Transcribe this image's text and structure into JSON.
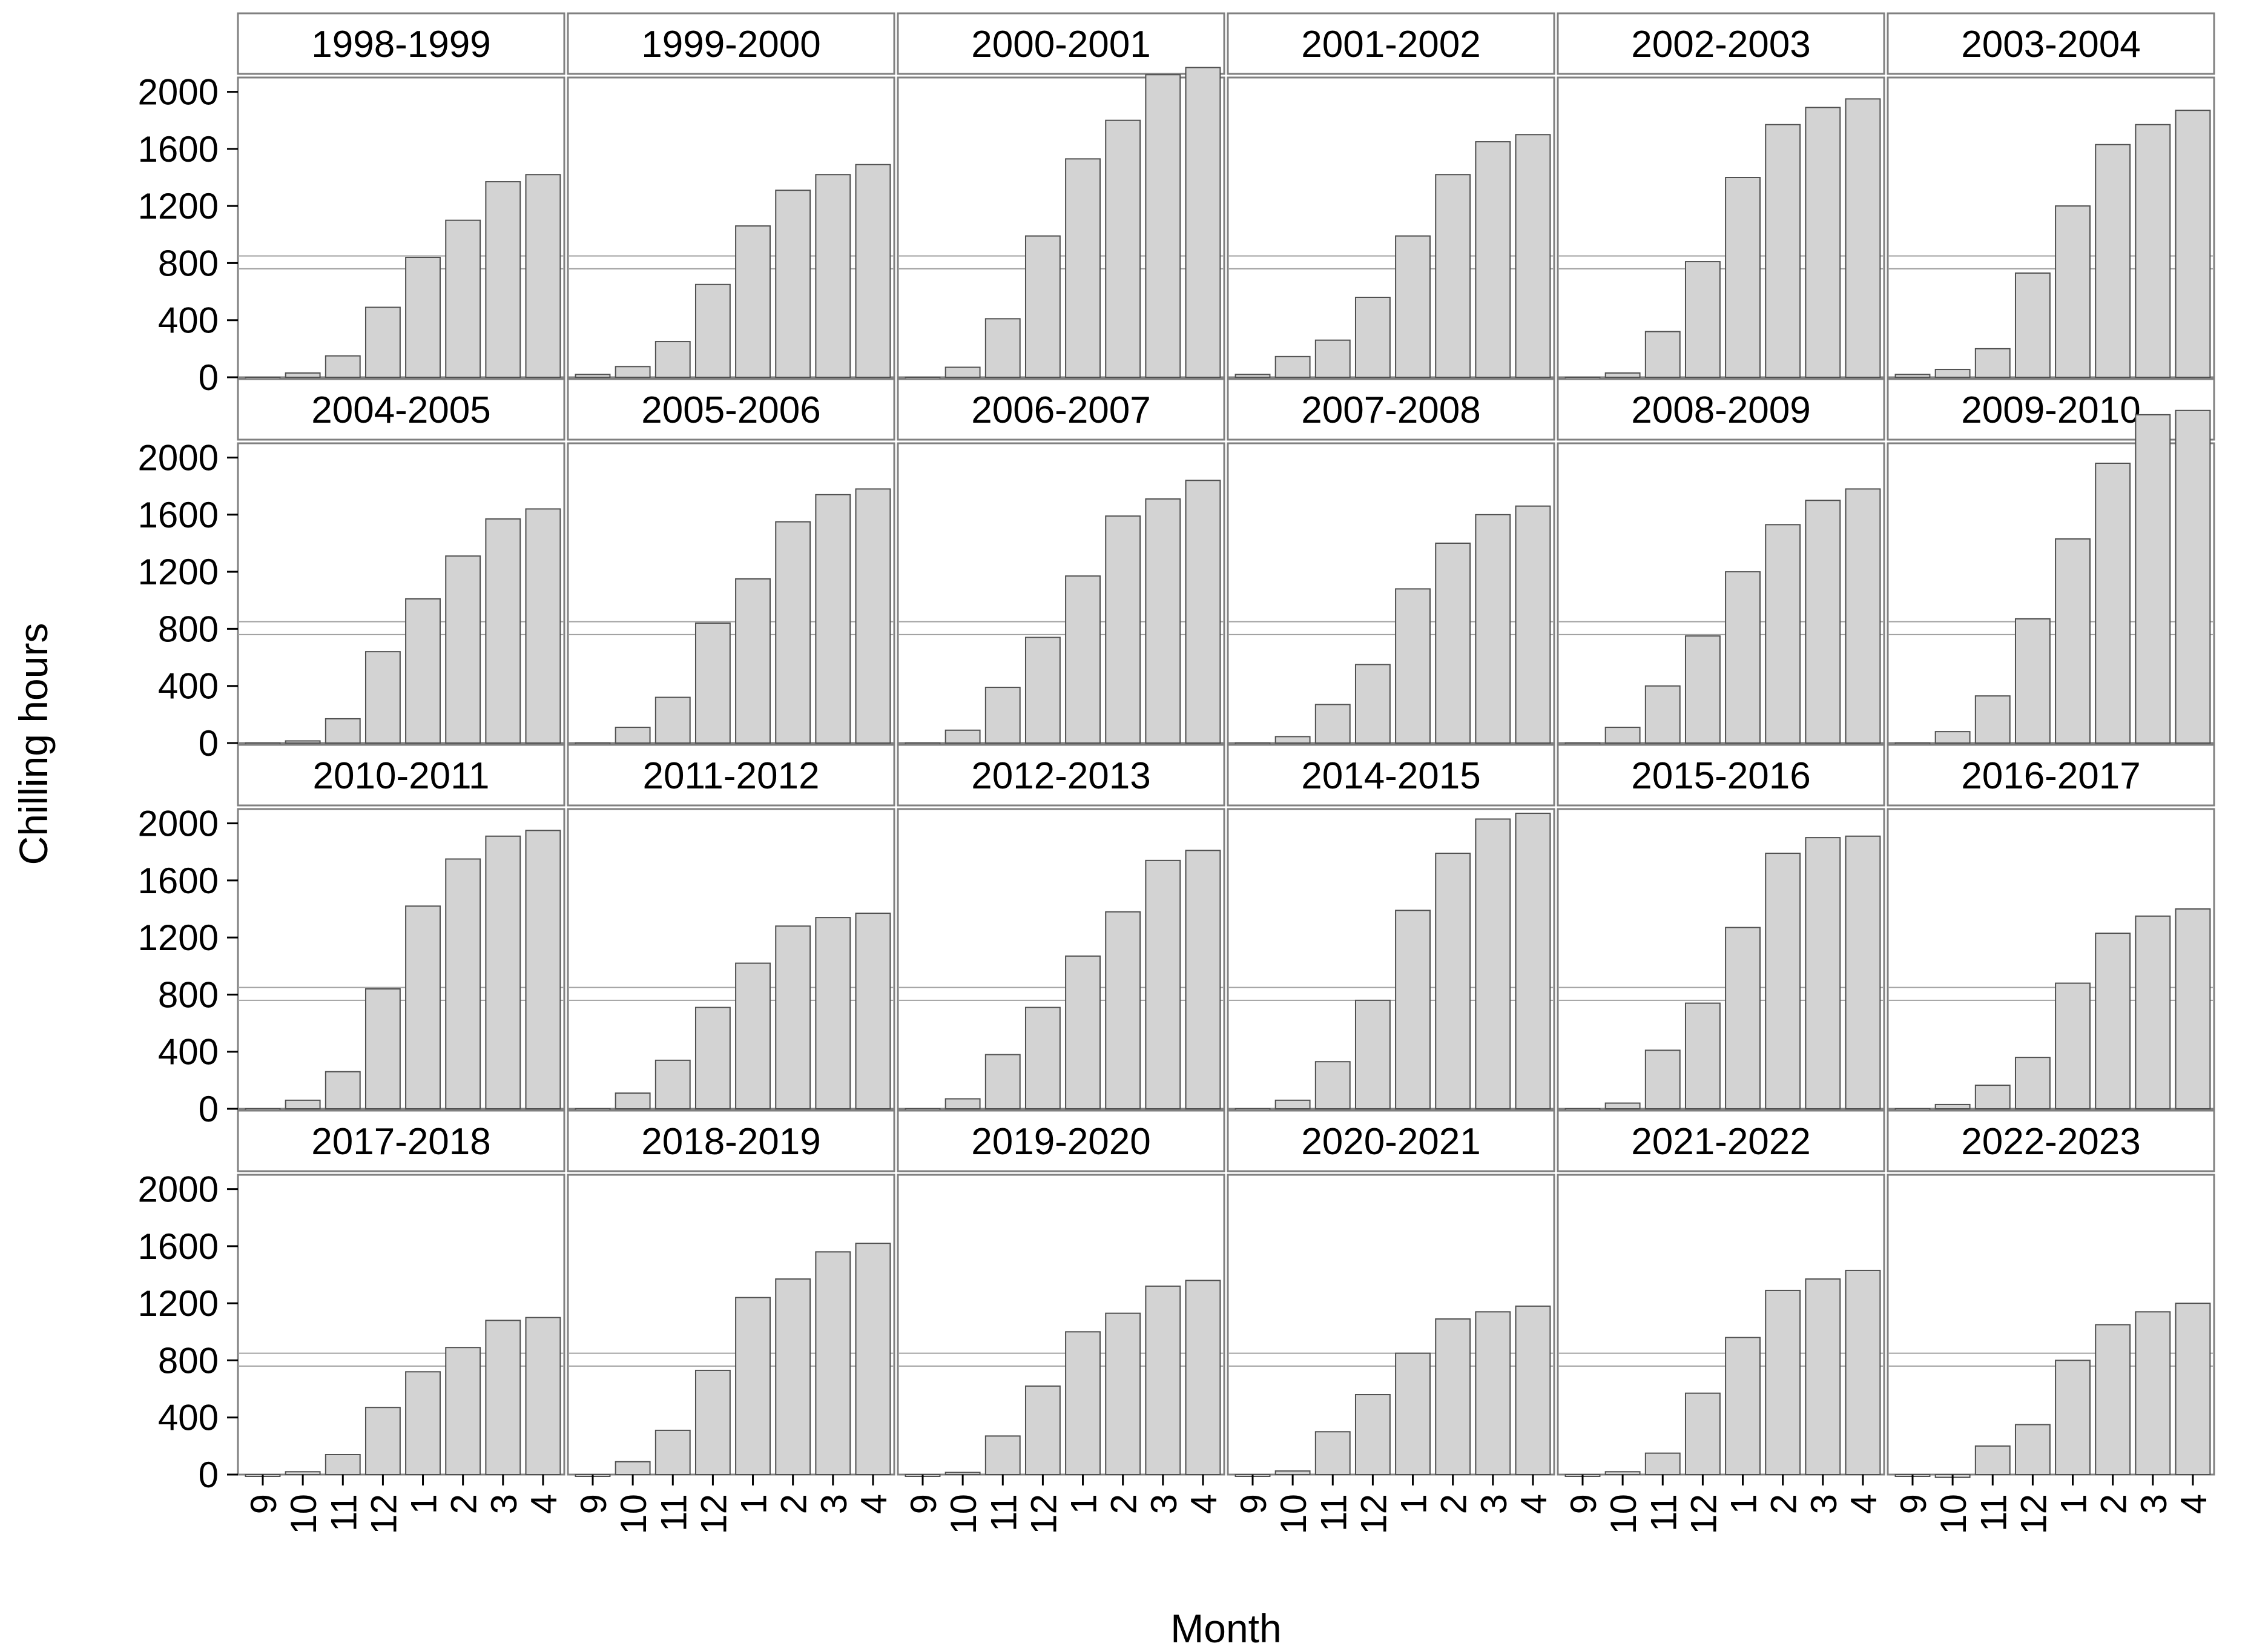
{
  "chart_data": {
    "type": "bar",
    "xlabel": "Month",
    "ylabel": "Chilling hours",
    "ylim": [
      0,
      2100
    ],
    "yticks": [
      0,
      400,
      800,
      1200,
      1600,
      2000
    ],
    "categories": [
      "9",
      "10",
      "11",
      "12",
      "1",
      "2",
      "3",
      "4"
    ],
    "reference_lines": [
      760,
      850
    ],
    "grid": false,
    "facets": [
      {
        "name": "1998-1999",
        "values": [
          0,
          30,
          150,
          490,
          840,
          1100,
          1370,
          1420
        ]
      },
      {
        "name": "1999-2000",
        "values": [
          20,
          75,
          250,
          650,
          1060,
          1310,
          1420,
          1490
        ]
      },
      {
        "name": "2000-2001",
        "values": [
          0,
          70,
          410,
          990,
          1530,
          1800,
          2120,
          2170
        ]
      },
      {
        "name": "2001-2002",
        "values": [
          20,
          145,
          260,
          560,
          990,
          1420,
          1650,
          1700
        ]
      },
      {
        "name": "2002-2003",
        "values": [
          0,
          30,
          320,
          810,
          1400,
          1770,
          1890,
          1950
        ]
      },
      {
        "name": "2003-2004",
        "values": [
          20,
          55,
          200,
          730,
          1200,
          1630,
          1770,
          1870
        ]
      },
      {
        "name": "2004-2005",
        "values": [
          0,
          15,
          170,
          640,
          1010,
          1310,
          1570,
          1640
        ]
      },
      {
        "name": "2005-2006",
        "values": [
          0,
          110,
          320,
          840,
          1150,
          1550,
          1740,
          1780
        ]
      },
      {
        "name": "2006-2007",
        "values": [
          0,
          90,
          390,
          740,
          1170,
          1590,
          1710,
          1840
        ]
      },
      {
        "name": "2007-2008",
        "values": [
          0,
          45,
          270,
          550,
          1080,
          1400,
          1600,
          1660
        ]
      },
      {
        "name": "2008-2009",
        "values": [
          0,
          110,
          400,
          750,
          1200,
          1530,
          1700,
          1780
        ]
      },
      {
        "name": "2009-2010",
        "values": [
          0,
          80,
          330,
          870,
          1430,
          1960,
          2300,
          2330
        ]
      },
      {
        "name": "2010-2011",
        "values": [
          0,
          60,
          260,
          840,
          1420,
          1750,
          1910,
          1950
        ]
      },
      {
        "name": "2011-2012",
        "values": [
          0,
          110,
          340,
          710,
          1020,
          1280,
          1340,
          1370
        ]
      },
      {
        "name": "2012-2013",
        "values": [
          0,
          70,
          380,
          710,
          1070,
          1380,
          1740,
          1810
        ]
      },
      {
        "name": "2014-2015",
        "values": [
          0,
          60,
          330,
          760,
          1390,
          1790,
          2030,
          2070
        ]
      },
      {
        "name": "2015-2016",
        "values": [
          0,
          40,
          410,
          740,
          1270,
          1790,
          1900,
          1910
        ]
      },
      {
        "name": "2016-2017",
        "values": [
          0,
          30,
          165,
          360,
          880,
          1230,
          1350,
          1400
        ]
      },
      {
        "name": "2017-2018",
        "values": [
          0,
          20,
          140,
          470,
          720,
          890,
          1080,
          1100
        ]
      },
      {
        "name": "2018-2019",
        "values": [
          0,
          90,
          310,
          730,
          1240,
          1370,
          1560,
          1620
        ]
      },
      {
        "name": "2019-2020",
        "values": [
          0,
          15,
          270,
          620,
          1000,
          1130,
          1320,
          1360
        ]
      },
      {
        "name": "2020-2021",
        "values": [
          0,
          25,
          300,
          560,
          850,
          1090,
          1140,
          1180
        ]
      },
      {
        "name": "2021-2022",
        "values": [
          0,
          20,
          150,
          570,
          960,
          1290,
          1370,
          1430
        ]
      },
      {
        "name": "2022-2023",
        "values": [
          0,
          -20,
          200,
          350,
          800,
          1050,
          1140,
          1200
        ]
      }
    ]
  }
}
